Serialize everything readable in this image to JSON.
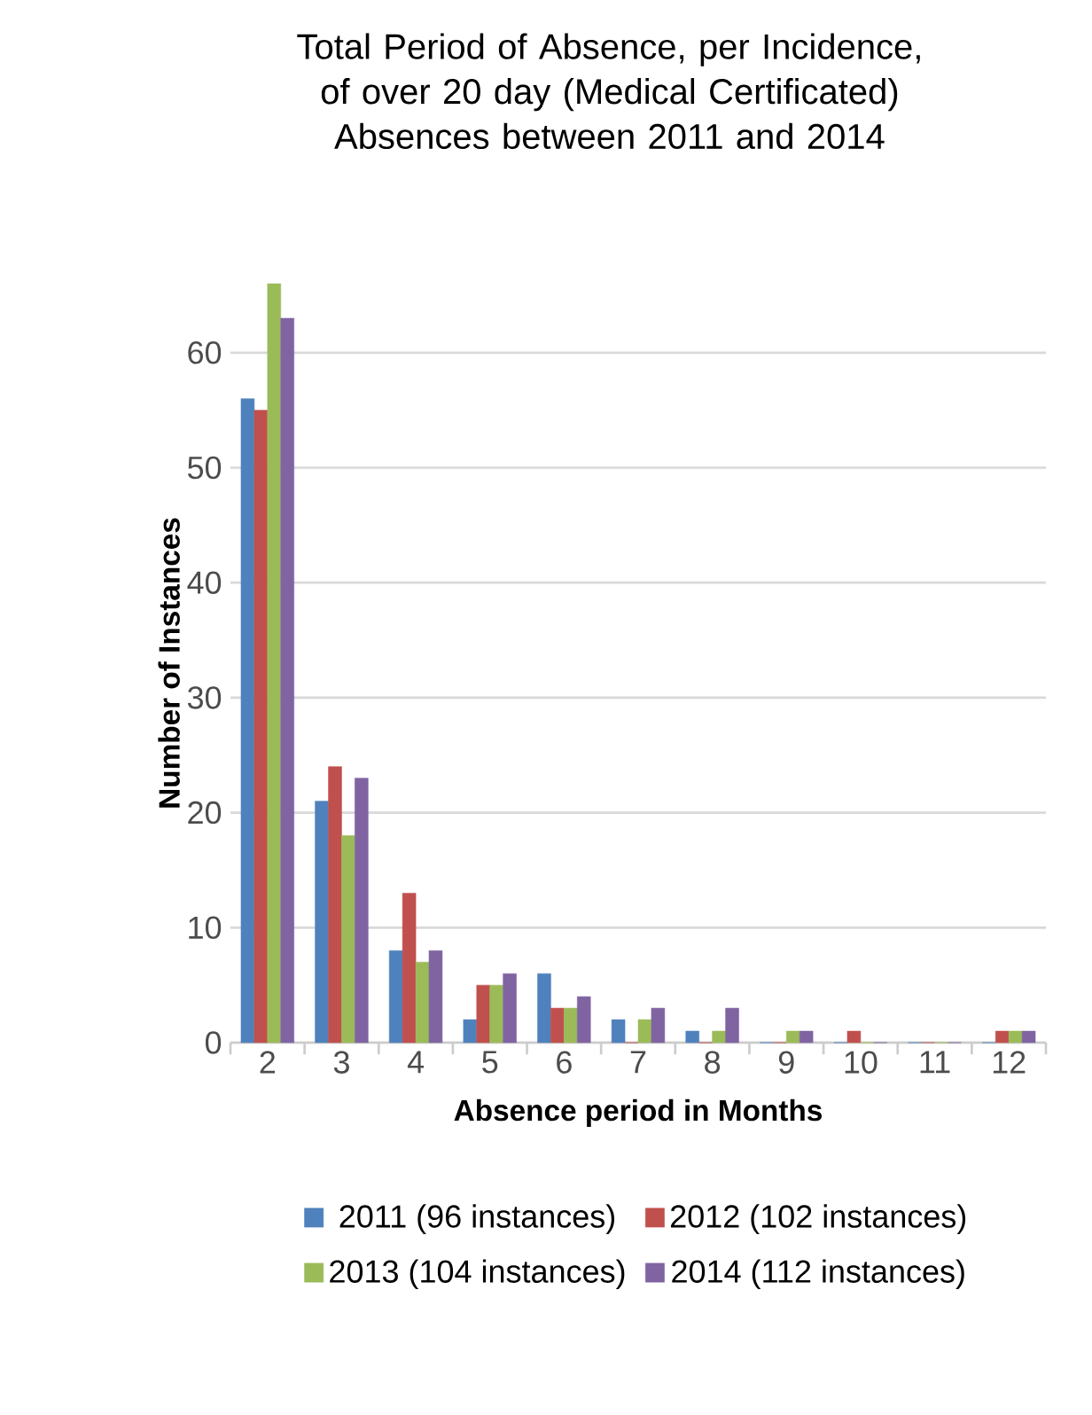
{
  "chart_data": {
    "type": "bar",
    "title": "Total Period of Absence, per Incidence, of over 20 day (Medical Certificated) Absences between 2011 and 2014",
    "xlabel": "Absence period in Months",
    "ylabel": "Number of Instances",
    "categories": [
      "2",
      "3",
      "4",
      "5",
      "6",
      "7",
      "8",
      "9",
      "10",
      "11",
      "12"
    ],
    "series": [
      {
        "name": "2011 (96 instances)",
        "color": "#4f81bd",
        "values": [
          56,
          21,
          8,
          2,
          6,
          2,
          1,
          0,
          0,
          0,
          0
        ]
      },
      {
        "name": "2012 (102 instances)",
        "color": "#c0504d",
        "values": [
          55,
          24,
          13,
          5,
          3,
          0,
          0,
          0,
          1,
          0,
          1
        ]
      },
      {
        "name": "2013 (104 instances)",
        "color": "#9bbb59",
        "values": [
          66,
          18,
          7,
          5,
          3,
          2,
          1,
          1,
          0,
          0,
          1
        ]
      },
      {
        "name": "2014 (112 instances)",
        "color": "#8064a2",
        "values": [
          63,
          23,
          8,
          6,
          4,
          3,
          3,
          1,
          0,
          0,
          1
        ]
      }
    ],
    "ylim": [
      0,
      66
    ],
    "yticks": [
      0,
      10,
      20,
      30,
      40,
      50,
      60
    ],
    "grid": "y",
    "legend": "bottom"
  }
}
